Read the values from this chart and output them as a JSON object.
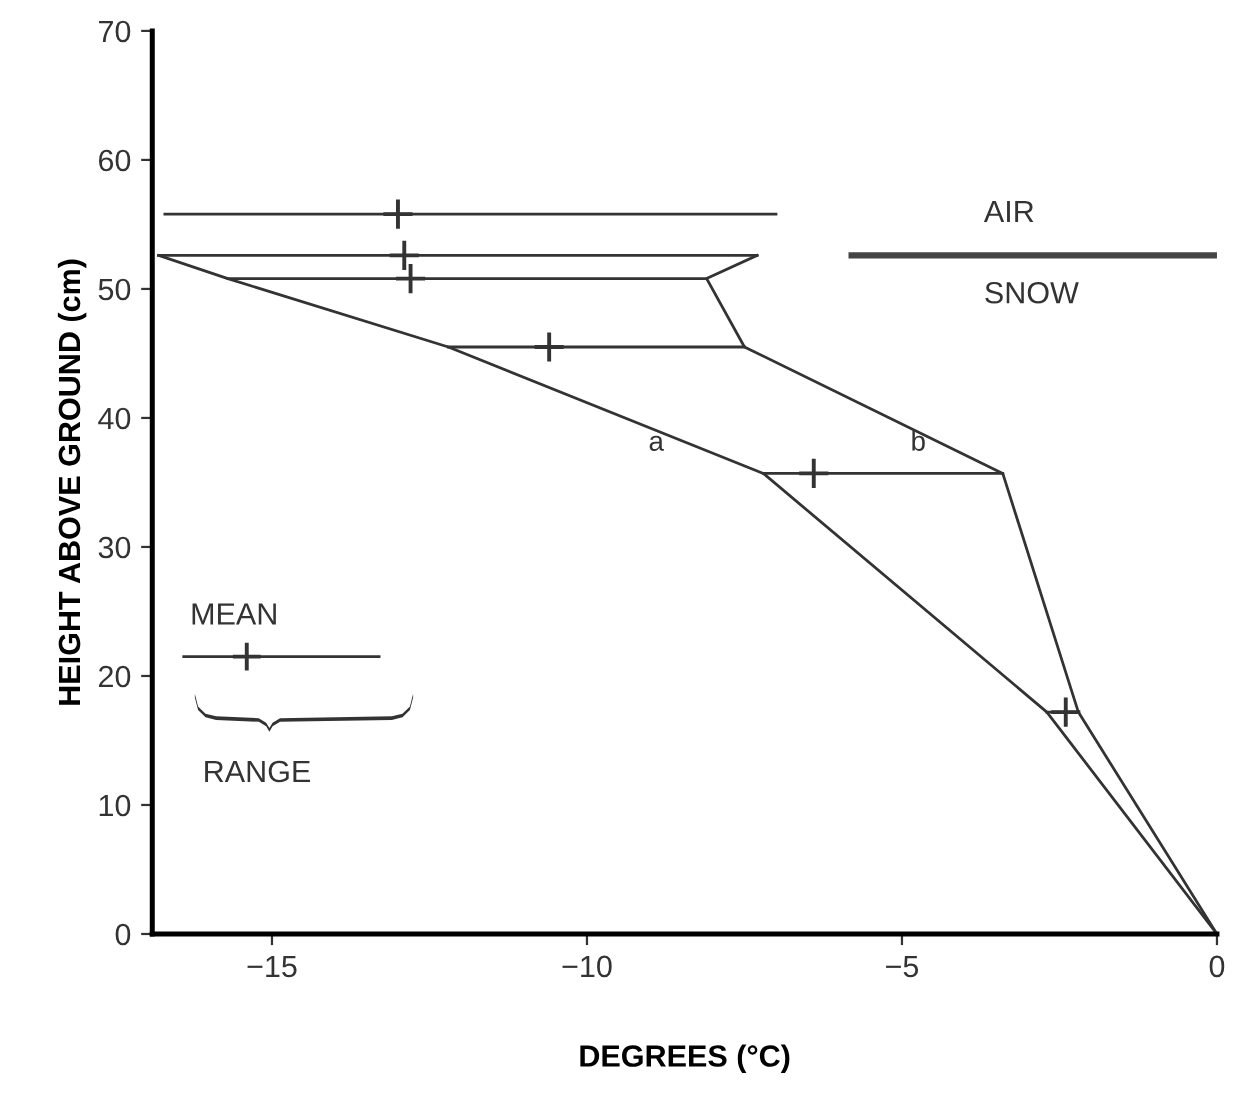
{
  "chart_data": {
    "type": "line",
    "xlabel": "DEGREES (°C)",
    "ylabel": "HEIGHT ABOVE GROUND (cm)",
    "xlim": [
      -16.9,
      0
    ],
    "ylim": [
      0,
      70
    ],
    "xticks": [
      {
        "value": -15,
        "label": "−15"
      },
      {
        "value": -10,
        "label": "−10"
      },
      {
        "value": -5,
        "label": "−5"
      },
      0
    ],
    "yticks": [
      0,
      10,
      20,
      30,
      40,
      50,
      60,
      70
    ],
    "grid": false,
    "legend": false,
    "series": [
      {
        "name": "a",
        "color": "#333333",
        "x": [
          -16.8,
          -15.7,
          -12.2,
          -7.2,
          -2.7,
          0
        ],
        "values": [
          52.6,
          50.8,
          45.5,
          35.7,
          17.2,
          0
        ]
      },
      {
        "name": "b",
        "color": "#333333",
        "x": [
          -7.3,
          -8.1,
          -7.5,
          -3.4,
          -2.2,
          0
        ],
        "values": [
          52.6,
          50.8,
          45.5,
          35.7,
          17.2,
          0
        ]
      },
      {
        "type": "scatter",
        "marker": "cross",
        "color": "#333333",
        "x": [
          -13.0,
          -12.9,
          -12.8,
          -10.6,
          -6.4,
          -2.4
        ],
        "values": [
          55.8,
          52.6,
          50.8,
          45.5,
          35.7,
          17.2
        ],
        "xerrors": [
          [
            -16.7,
            -7.0
          ],
          [
            -16.8,
            -7.3
          ],
          [
            -15.7,
            -8.1
          ],
          [
            -12.2,
            -7.5
          ],
          [
            -7.2,
            -3.4
          ],
          [
            -2.7,
            -2.2
          ]
        ]
      },
      {
        "color": "#444444",
        "x": [
          -5.8,
          0
        ],
        "values": [
          52.6,
          52.6
        ]
      }
    ],
    "annotations": [
      "AIR",
      "SNOW",
      "MEAN",
      "RANGE"
    ]
  }
}
